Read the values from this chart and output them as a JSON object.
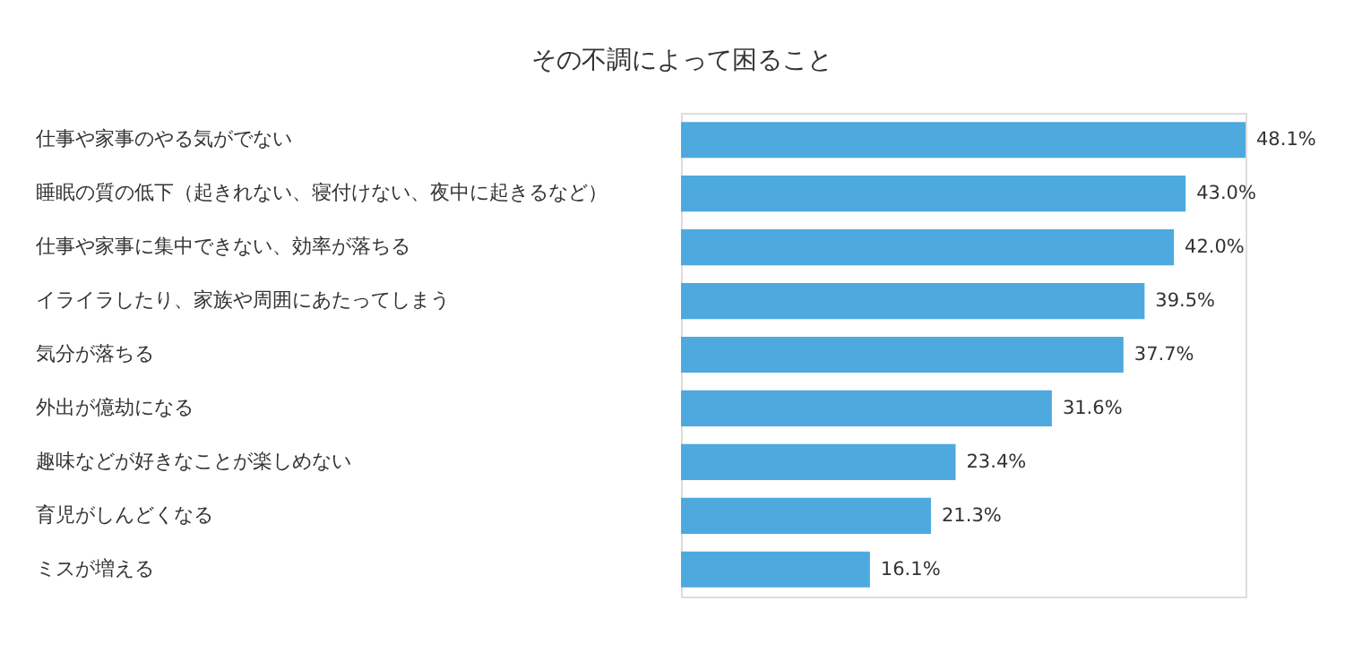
{
  "chart_data": {
    "type": "bar",
    "orientation": "horizontal",
    "title": "その不調によって困ること",
    "categories": [
      "仕事や家事のやる気がでない",
      "睡眠の質の低下（起きれない、寝付けない、夜中に起きるなど）",
      "仕事や家事に集中できない、効率が落ちる",
      "イライラしたり、家族や周囲にあたってしまう",
      "気分が落ちる",
      "外出が億劫になる",
      "趣味などが好きなことが楽しめない",
      "育児がしんどくなる",
      "ミスが増える"
    ],
    "values": [
      48.1,
      43.0,
      42.0,
      39.5,
      37.7,
      31.6,
      23.4,
      21.3,
      16.1
    ],
    "value_labels": [
      "48.1%",
      "43.0%",
      "42.0%",
      "39.5%",
      "37.7%",
      "31.6%",
      "23.4%",
      "21.3%",
      "16.1%"
    ],
    "color": "#4ea9df"
  }
}
